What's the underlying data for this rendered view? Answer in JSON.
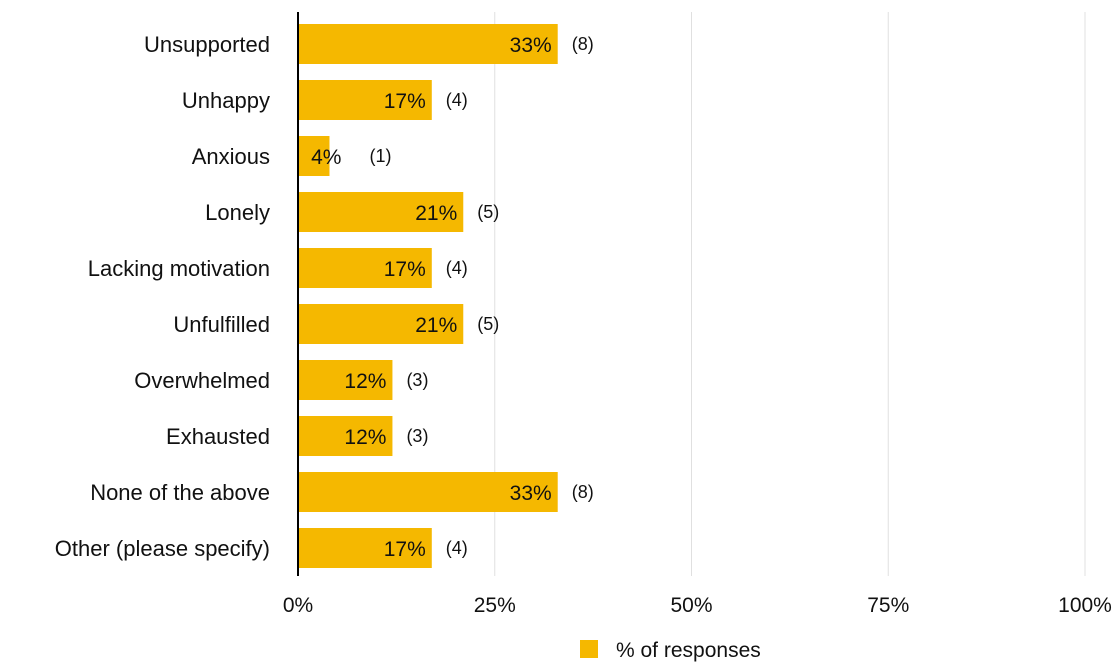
{
  "chart_data": {
    "type": "bar",
    "orientation": "horizontal",
    "categories": [
      "Unsupported",
      "Unhappy",
      "Anxious",
      "Lonely",
      "Lacking motivation",
      "Unfulfilled",
      "Overwhelmed",
      "Exhausted",
      "None of the above",
      "Other (please specify)"
    ],
    "series": [
      {
        "name": "% of responses",
        "values": [
          33,
          17,
          4,
          21,
          17,
          21,
          12,
          12,
          33,
          17
        ],
        "value_labels": [
          "33%",
          "17%",
          "4%",
          "21%",
          "17%",
          "21%",
          "12%",
          "12%",
          "33%",
          "17%"
        ],
        "counts": [
          "(8)",
          "(4)",
          "(1)",
          "(5)",
          "(4)",
          "(5)",
          "(3)",
          "(3)",
          "(8)",
          "(4)"
        ]
      }
    ],
    "xlim": [
      0,
      100
    ],
    "xticks": [
      0,
      25,
      50,
      75,
      100
    ],
    "xtick_labels": [
      "0%",
      "25%",
      "50%",
      "75%",
      "100%"
    ],
    "grid": true,
    "legend_position": "bottom-center",
    "colors": {
      "bar": "#f5b800",
      "grid": "#e0e0e0",
      "axis": "#000000"
    }
  }
}
